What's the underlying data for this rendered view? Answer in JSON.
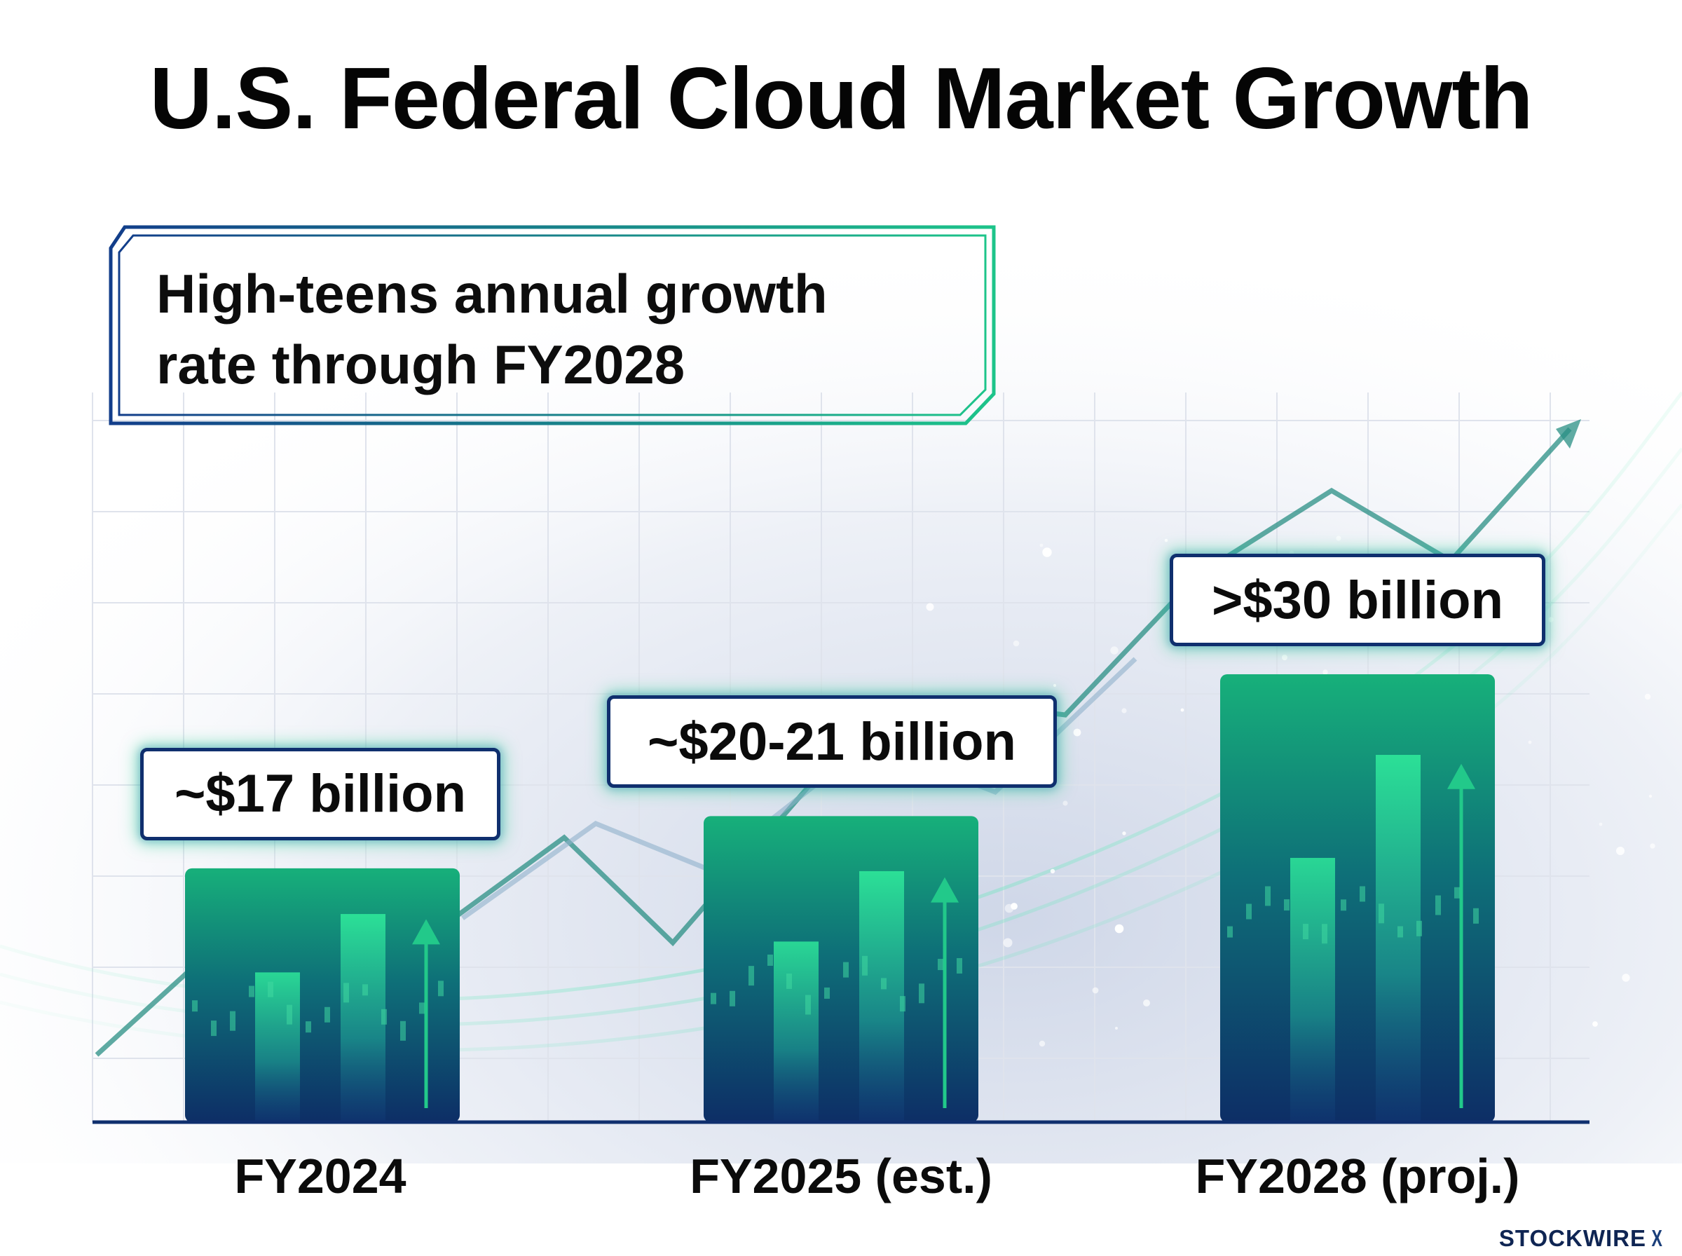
{
  "chart_data": {
    "type": "bar",
    "title": "U.S. Federal Cloud Market Growth",
    "annotation": {
      "line1": "High-teens annual growth",
      "line2": "rate through FY2028"
    },
    "categories": [
      "FY2024",
      "FY2025 (est.)",
      "FY2028 (proj.)"
    ],
    "values": [
      17,
      20.5,
      30
    ],
    "data_labels": [
      "~$17 billion",
      "~$20-21 billion",
      ">$30 billion"
    ],
    "unit": "billion USD",
    "ylim": [
      0,
      33
    ],
    "grid": false,
    "legend": "none",
    "colors": {
      "bar_top": "#17b07a",
      "bar_bottom": "#0d2e66",
      "label_border": "#0f2f6e",
      "glow": "#2ed296",
      "trend": "#2a8f84"
    }
  },
  "brand": {
    "text": "STOCKWIRE",
    "mark": "X"
  }
}
